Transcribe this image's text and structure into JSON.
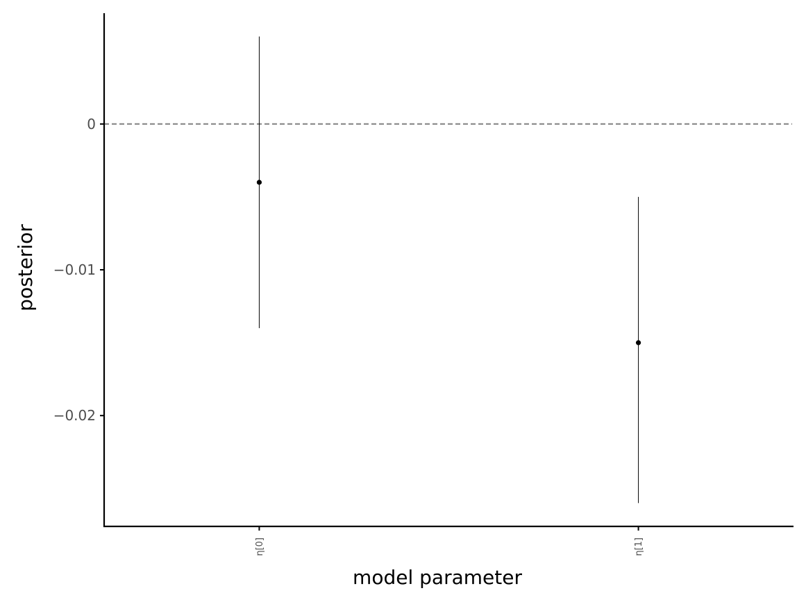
{
  "chart_data": {
    "type": "scatter",
    "title": "",
    "xlabel": "model parameter",
    "ylabel": "posterior",
    "categories": [
      "η[0]",
      "η[1]"
    ],
    "points": [
      {
        "category": "η[0]",
        "value": -0.004,
        "lower": -0.014,
        "upper": 0.006
      },
      {
        "category": "η[1]",
        "value": -0.015,
        "lower": -0.026,
        "upper": -0.005
      }
    ],
    "ylim": [
      -0.0276,
      0.0076
    ],
    "yticks": [
      0,
      -0.01,
      -0.02
    ],
    "ytick_labels": [
      "0",
      "−0.01",
      "−0.02"
    ],
    "reference_line": {
      "y": 0,
      "style": "dashed",
      "color": "#808080"
    },
    "grid": false,
    "legend": "none",
    "colors": {
      "marks": "#000000",
      "axis": "#000000",
      "tick_text": "#4d4d4d"
    }
  }
}
